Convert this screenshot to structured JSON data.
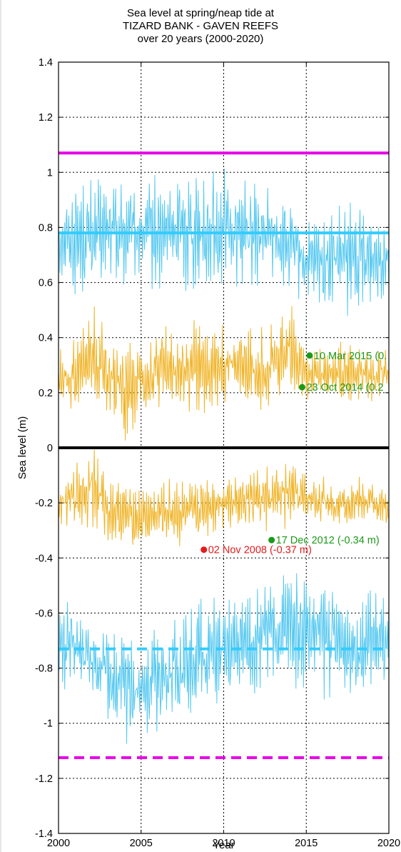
{
  "title_lines": [
    "Sea level at spring/neap tide at",
    "TIZARD BANK - GAVEN REEFS",
    "over 20 years (2000-2020)"
  ],
  "chart_data": {
    "type": "line",
    "title": "Sea level at spring/neap tide at TIZARD BANK - GAVEN REEFS over 20 years (2000-2020)",
    "xlabel": "Year",
    "ylabel": "Sea level (m)",
    "xlim": [
      2000,
      2020
    ],
    "ylim": [
      -1.4,
      1.4
    ],
    "grid": true,
    "xticks": [
      2000,
      2005,
      2010,
      2015,
      2020
    ],
    "xtick_labels": [
      "2000",
      "2005",
      "2010",
      "2015",
      "2020"
    ],
    "yticks": [
      1.4,
      1.2,
      1,
      0.8,
      0.6,
      0.4,
      0.2,
      0,
      -0.2,
      -0.4,
      -0.6,
      -0.8,
      -1,
      -1.2,
      -1.4
    ],
    "ytick_labels": [
      "1.4",
      "1.2",
      "1",
      "0.8",
      "0.6",
      "0.4",
      "0.2",
      "0",
      "-0.2",
      "-0.4",
      "-0.6",
      "-0.8",
      "-1",
      "-1.2",
      "-1.4"
    ],
    "reference_lines": [
      {
        "y": 1.07,
        "color": "#e600e6",
        "style": "solid"
      },
      {
        "y": 0.78,
        "color": "#33ccff",
        "style": "solid"
      },
      {
        "y": 0,
        "color": "#000000",
        "style": "solid"
      },
      {
        "y": -0.73,
        "color": "#33ccff",
        "style": "dashed"
      },
      {
        "y": -1.125,
        "color": "#e600e6",
        "style": "dashed"
      }
    ],
    "series": [
      {
        "color": "#55c8f0",
        "x": [
          2000,
          2001,
          2002,
          2003,
          2004,
          2005,
          2006,
          2007,
          2008,
          2009,
          2010,
          2011,
          2012,
          2013,
          2014,
          2015,
          2016,
          2017,
          2018,
          2019,
          2020
        ],
        "y_low": [
          0.6,
          0.55,
          0.55,
          0.57,
          0.56,
          0.6,
          0.55,
          0.56,
          0.55,
          0.54,
          0.57,
          0.57,
          0.55,
          0.6,
          0.55,
          0.52,
          0.5,
          0.48,
          0.45,
          0.5,
          0.55
        ],
        "y_high": [
          0.93,
          0.97,
          0.98,
          1.0,
          0.99,
          0.96,
          1.0,
          1.02,
          1.05,
          1.04,
          1.02,
          1.0,
          0.98,
          0.95,
          0.9,
          0.82,
          0.85,
          0.9,
          0.9,
          0.88,
          0.88
        ]
      },
      {
        "color": "#f0b428",
        "x": [
          2000,
          2001,
          2002,
          2003,
          2004,
          2005,
          2006,
          2007,
          2008,
          2009,
          2010,
          2011,
          2012,
          2013,
          2014,
          2015,
          2016,
          2017,
          2018,
          2019,
          2020
        ],
        "y_low": [
          0.15,
          0.12,
          0.1,
          0.12,
          0.0,
          0.12,
          0.1,
          0.12,
          0.07,
          0.13,
          0.15,
          0.15,
          0.12,
          0.15,
          0.18,
          0.16,
          0.16,
          0.15,
          0.17,
          0.16,
          0.18
        ],
        "y_high": [
          0.36,
          0.4,
          0.55,
          0.42,
          0.42,
          0.38,
          0.45,
          0.46,
          0.48,
          0.45,
          0.47,
          0.46,
          0.45,
          0.47,
          0.56,
          0.4,
          0.38,
          0.4,
          0.38,
          0.36,
          0.42
        ]
      },
      {
        "color": "#f0b428",
        "x": [
          2000,
          2001,
          2002,
          2003,
          2004,
          2005,
          2006,
          2007,
          2008,
          2009,
          2010,
          2011,
          2012,
          2013,
          2014,
          2015,
          2016,
          2017,
          2018,
          2019,
          2020
        ],
        "y_low": [
          -0.28,
          -0.3,
          -0.32,
          -0.35,
          -0.36,
          -0.37,
          -0.35,
          -0.36,
          -0.38,
          -0.33,
          -0.3,
          -0.3,
          -0.32,
          -0.33,
          -0.3,
          -0.3,
          -0.28,
          -0.28,
          -0.28,
          -0.28,
          -0.3
        ],
        "y_high": [
          -0.15,
          -0.05,
          0.06,
          -0.1,
          -0.12,
          -0.14,
          -0.13,
          -0.1,
          -0.12,
          -0.08,
          -0.08,
          -0.06,
          -0.05,
          -0.04,
          -0.03,
          -0.08,
          -0.1,
          -0.12,
          -0.1,
          -0.12,
          -0.15
        ]
      },
      {
        "color": "#55c8f0",
        "x": [
          2000,
          2001,
          2002,
          2003,
          2004,
          2005,
          2006,
          2007,
          2008,
          2009,
          2010,
          2011,
          2012,
          2013,
          2014,
          2015,
          2016,
          2017,
          2018,
          2019,
          2020
        ],
        "y_low": [
          -0.9,
          -0.88,
          -0.95,
          -1.0,
          -1.12,
          -1.1,
          -1.05,
          -1.02,
          -1.0,
          -0.98,
          -0.95,
          -0.93,
          -0.92,
          -0.9,
          -0.88,
          -0.88,
          -0.92,
          -0.93,
          -0.9,
          -0.88,
          -0.9
        ],
        "y_high": [
          -0.56,
          -0.55,
          -0.6,
          -0.62,
          -0.65,
          -0.65,
          -0.62,
          -0.6,
          -0.55,
          -0.52,
          -0.55,
          -0.5,
          -0.48,
          -0.45,
          -0.42,
          -0.43,
          -0.45,
          -0.5,
          -0.52,
          -0.5,
          -0.55
        ]
      }
    ],
    "annotations": [
      {
        "x": 2015.2,
        "y": 0.335,
        "label": "10 Mar 2015 (0.",
        "color": "#1a9a1a"
      },
      {
        "x": 2014.75,
        "y": 0.22,
        "label": "23 Oct 2014 (0.2",
        "color": "#1a9a1a"
      },
      {
        "x": 2012.9,
        "y": -0.335,
        "label": "17 Dec 2012 (-0.34 m)",
        "color": "#1a9a1a"
      },
      {
        "x": 2008.8,
        "y": -0.37,
        "label": "02 Nov 2008 (-0.37 m)",
        "color": "#e61a1a"
      }
    ]
  }
}
